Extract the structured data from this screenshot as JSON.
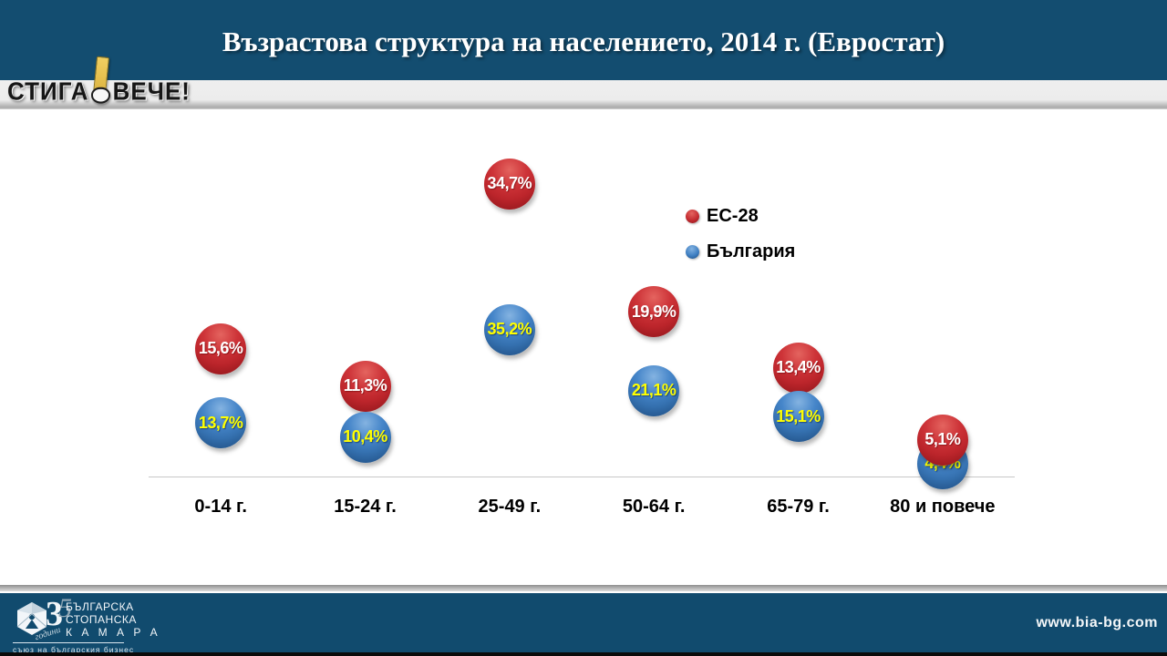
{
  "slide": {
    "title": "Възрастова структура на населението, 2014 г. (Евростат)",
    "header_color": "#134d70",
    "footer_color": "#114b6e"
  },
  "stiga_logo": {
    "part1": "СТИГА",
    "part2": "ВЕЧЕ!",
    "card_color": "#e9c353"
  },
  "chart_data": {
    "type": "scatter",
    "subtype": "bubble",
    "title": "Възрастова структура на населението, 2014 г. (Евростат)",
    "categories": [
      "0-14 г.",
      "15-24 г.",
      "25-49 г.",
      "50-64 г.",
      "65-79 г.",
      "80 и повече"
    ],
    "series": [
      {
        "name": "ЕС-28",
        "color": "#c02b30",
        "label_color": "#ffffff",
        "values": [
          15.6,
          11.3,
          34.7,
          19.9,
          13.4,
          5.1
        ],
        "labels": [
          "15,6%",
          "11,3%",
          "34,7%",
          "19,9%",
          "13,4%",
          "5,1%"
        ]
      },
      {
        "name": "България",
        "color": "#3b7cc2",
        "label_color": "#ffff00",
        "values": [
          13.7,
          10.4,
          35.2,
          21.1,
          15.1,
          4.4
        ],
        "labels": [
          "13,7%",
          "10,4%",
          "35,2%",
          "21,1%",
          "15,1%",
          "4,4%"
        ]
      }
    ],
    "legend_position": "upper right",
    "grid": false,
    "xlabel": "",
    "ylabel": ""
  },
  "footer": {
    "org_line1": "БЪЛГАРСКА",
    "org_line2": "СТОПАНСКА",
    "org_line3": "К А М А Р А",
    "org_tagline": "съюз на българския бизнес",
    "years_number": "3",
    "years_number2": "5",
    "years_word": "години",
    "website": "www.bia-bg.com"
  }
}
